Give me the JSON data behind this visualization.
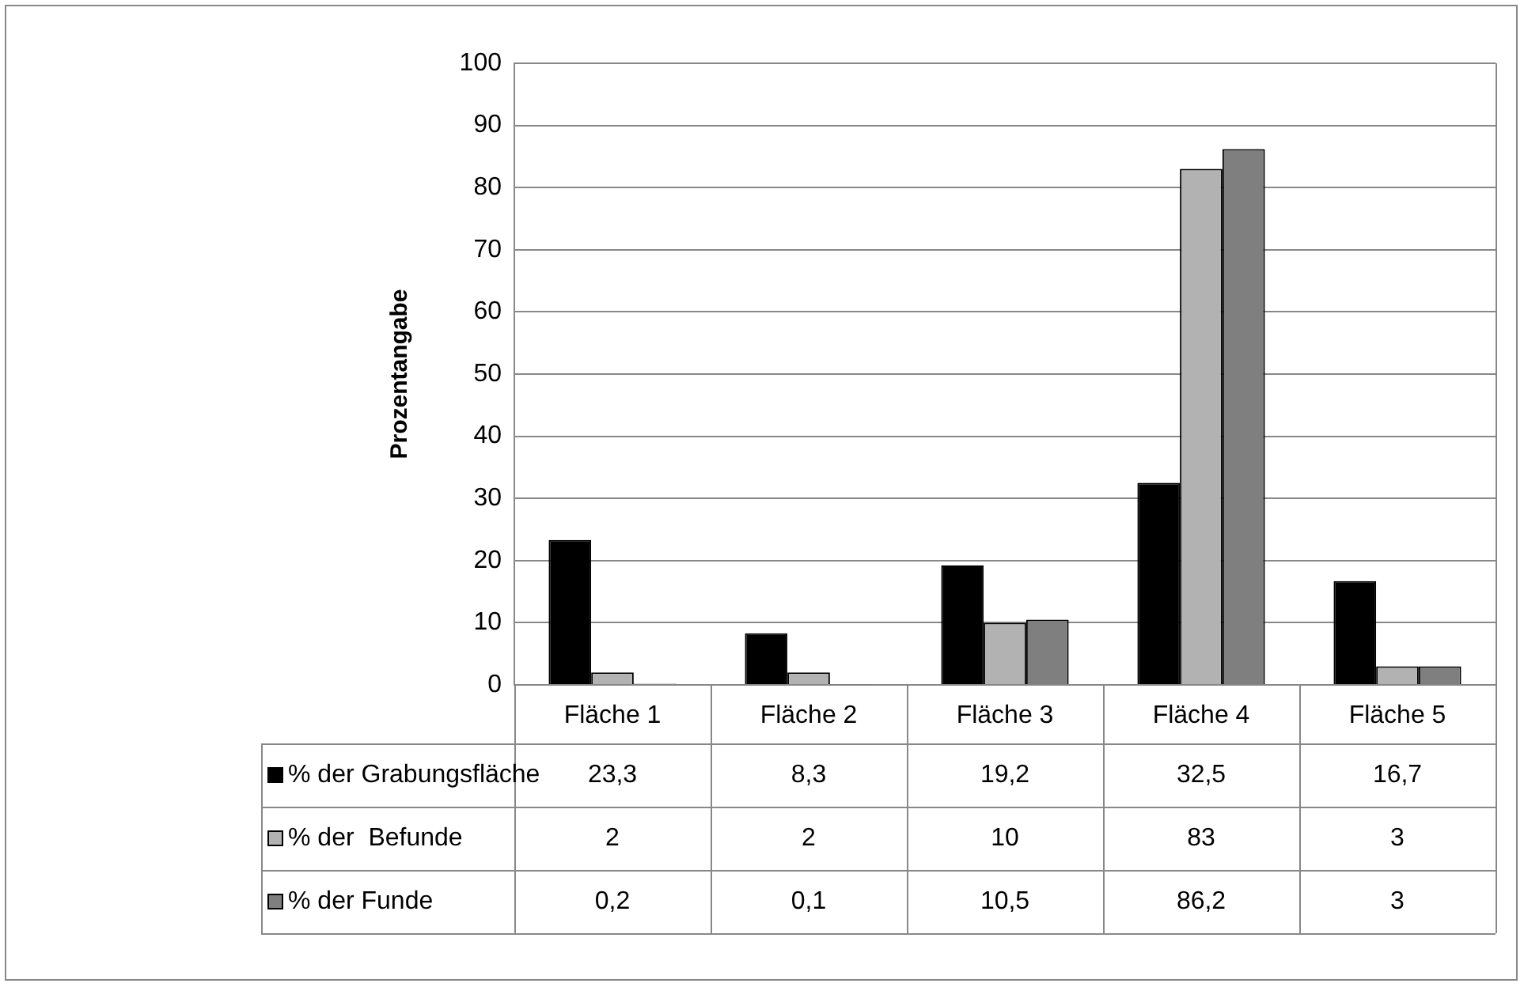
{
  "chart_data": {
    "type": "bar",
    "ylabel": "Prozentangabe",
    "categories": [
      "Fläche 1",
      "Fläche 2",
      "Fläche 3",
      "Fläche 4",
      "Fläche 5"
    ],
    "series": [
      {
        "name": "% der Grabungsfläche",
        "color": "#000000",
        "values": [
          23.3,
          8.3,
          19.2,
          32.5,
          16.7
        ],
        "value_labels": [
          "23,3",
          "8,3",
          "19,2",
          "32,5",
          "16,7"
        ]
      },
      {
        "name": "% der  Befunde",
        "color": "#b2b2b2",
        "values": [
          2,
          2,
          10,
          83,
          3
        ],
        "value_labels": [
          "2",
          "2",
          "10",
          "83",
          "3"
        ]
      },
      {
        "name": "% der Funde",
        "color": "#7f7f7f",
        "values": [
          0.2,
          0.1,
          10.5,
          86.2,
          3
        ],
        "value_labels": [
          "0,2",
          "0,1",
          "10,5",
          "86,2",
          "3"
        ]
      }
    ],
    "ylim": [
      0,
      100
    ],
    "yticks": [
      0,
      10,
      20,
      30,
      40,
      50,
      60,
      70,
      80,
      90,
      100
    ],
    "grid": "y",
    "legend": "bottom left"
  }
}
